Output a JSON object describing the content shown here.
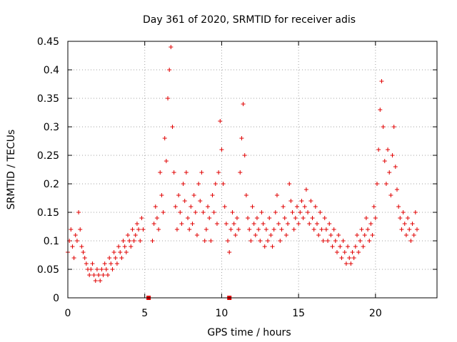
{
  "chart_data": {
    "type": "scatter",
    "title": "Day 361 of 2020, SRMTID for receiver adis",
    "xlabel": "GPS time / hours",
    "ylabel": "SRMTID / TECUs",
    "xlim": [
      0,
      24
    ],
    "ylim": [
      0,
      0.45
    ],
    "xticks": [
      0,
      5,
      10,
      15,
      20
    ],
    "yticks": [
      0,
      0.05,
      0.1,
      0.15,
      0.2,
      0.25,
      0.3,
      0.35,
      0.4,
      0.45
    ],
    "xtick_labels": [
      "0",
      "5",
      "10",
      "15",
      "20"
    ],
    "ytick_labels": [
      "0",
      "0.05",
      "0.1",
      "0.15",
      "0.2",
      "0.25",
      "0.3",
      "0.35",
      "0.4",
      "0.45"
    ],
    "grid": true,
    "marker": "+",
    "color": "#e00000",
    "series": [
      {
        "name": "SRMTID",
        "x": [
          0.0,
          0.1,
          0.2,
          0.3,
          0.4,
          0.5,
          0.6,
          0.7,
          0.8,
          0.9,
          1.0,
          1.1,
          1.2,
          1.3,
          1.4,
          1.5,
          1.6,
          1.7,
          1.8,
          1.9,
          2.0,
          2.1,
          2.2,
          2.3,
          2.4,
          2.5,
          2.6,
          2.7,
          2.8,
          2.9,
          3.0,
          3.1,
          3.2,
          3.3,
          3.4,
          3.5,
          3.6,
          3.7,
          3.8,
          3.9,
          4.0,
          4.1,
          4.2,
          4.3,
          4.4,
          4.5,
          4.6,
          4.7,
          4.8,
          4.9,
          5.5,
          5.6,
          5.7,
          5.8,
          5.9,
          6.0,
          6.1,
          6.2,
          6.3,
          6.4,
          6.5,
          6.6,
          6.7,
          6.8,
          6.9,
          7.0,
          7.1,
          7.2,
          7.3,
          7.4,
          7.5,
          7.6,
          7.7,
          7.8,
          7.9,
          8.0,
          8.1,
          8.2,
          8.3,
          8.4,
          8.5,
          8.6,
          8.7,
          8.8,
          8.9,
          9.0,
          9.1,
          9.2,
          9.3,
          9.4,
          9.5,
          9.6,
          9.7,
          9.8,
          9.9,
          10.0,
          10.1,
          10.2,
          10.3,
          10.4,
          10.5,
          10.6,
          10.7,
          10.8,
          10.9,
          11.0,
          11.1,
          11.2,
          11.3,
          11.4,
          11.5,
          11.6,
          11.7,
          11.8,
          11.9,
          12.0,
          12.1,
          12.2,
          12.3,
          12.4,
          12.5,
          12.6,
          12.7,
          12.8,
          12.9,
          13.0,
          13.1,
          13.2,
          13.3,
          13.4,
          13.5,
          13.6,
          13.7,
          13.8,
          13.9,
          14.0,
          14.1,
          14.2,
          14.3,
          14.4,
          14.5,
          14.6,
          14.7,
          14.8,
          14.9,
          15.0,
          15.1,
          15.2,
          15.3,
          15.4,
          15.5,
          15.6,
          15.7,
          15.8,
          15.9,
          16.0,
          16.1,
          16.2,
          16.3,
          16.4,
          16.5,
          16.6,
          16.7,
          16.8,
          16.9,
          17.0,
          17.1,
          17.2,
          17.3,
          17.4,
          17.5,
          17.6,
          17.7,
          17.8,
          17.9,
          18.0,
          18.1,
          18.2,
          18.3,
          18.4,
          18.5,
          18.6,
          18.7,
          18.8,
          18.9,
          19.0,
          19.1,
          19.2,
          19.3,
          19.4,
          19.5,
          19.6,
          19.7,
          19.8,
          19.9,
          20.0,
          20.1,
          20.2,
          20.3,
          20.4,
          20.5,
          20.6,
          20.7,
          20.8,
          20.9,
          21.0,
          21.1,
          21.2,
          21.3,
          21.4,
          21.5,
          21.6,
          21.7,
          21.8,
          21.9,
          22.0,
          22.1,
          22.2,
          22.3,
          22.4,
          22.5,
          22.6,
          22.7
        ],
        "y": [
          0.08,
          0.1,
          0.12,
          0.09,
          0.07,
          0.11,
          0.1,
          0.15,
          0.12,
          0.09,
          0.08,
          0.07,
          0.06,
          0.05,
          0.04,
          0.05,
          0.06,
          0.04,
          0.03,
          0.05,
          0.04,
          0.03,
          0.05,
          0.04,
          0.06,
          0.05,
          0.04,
          0.07,
          0.06,
          0.05,
          0.08,
          0.07,
          0.06,
          0.09,
          0.08,
          0.07,
          0.1,
          0.09,
          0.08,
          0.11,
          0.1,
          0.09,
          0.12,
          0.1,
          0.11,
          0.13,
          0.12,
          0.1,
          0.14,
          0.12,
          0.1,
          0.13,
          0.16,
          0.14,
          0.12,
          0.22,
          0.18,
          0.15,
          0.28,
          0.24,
          0.35,
          0.4,
          0.44,
          0.3,
          0.22,
          0.16,
          0.12,
          0.18,
          0.15,
          0.13,
          0.2,
          0.17,
          0.22,
          0.14,
          0.12,
          0.16,
          0.13,
          0.18,
          0.15,
          0.11,
          0.2,
          0.17,
          0.22,
          0.15,
          0.1,
          0.12,
          0.16,
          0.14,
          0.1,
          0.18,
          0.15,
          0.2,
          0.13,
          0.22,
          0.31,
          0.26,
          0.2,
          0.16,
          0.13,
          0.1,
          0.08,
          0.12,
          0.15,
          0.13,
          0.11,
          0.14,
          0.12,
          0.22,
          0.28,
          0.34,
          0.25,
          0.18,
          0.14,
          0.12,
          0.1,
          0.16,
          0.13,
          0.11,
          0.14,
          0.12,
          0.1,
          0.15,
          0.13,
          0.09,
          0.12,
          0.1,
          0.14,
          0.11,
          0.09,
          0.12,
          0.15,
          0.18,
          0.13,
          0.1,
          0.12,
          0.16,
          0.14,
          0.11,
          0.13,
          0.2,
          0.17,
          0.15,
          0.12,
          0.14,
          0.16,
          0.13,
          0.15,
          0.17,
          0.14,
          0.16,
          0.19,
          0.15,
          0.13,
          0.17,
          0.14,
          0.12,
          0.16,
          0.13,
          0.11,
          0.15,
          0.12,
          0.1,
          0.14,
          0.12,
          0.1,
          0.13,
          0.11,
          0.09,
          0.12,
          0.1,
          0.08,
          0.11,
          0.09,
          0.07,
          0.1,
          0.08,
          0.06,
          0.09,
          0.07,
          0.06,
          0.08,
          0.07,
          0.09,
          0.11,
          0.08,
          0.1,
          0.12,
          0.09,
          0.11,
          0.14,
          0.12,
          0.1,
          0.13,
          0.11,
          0.16,
          0.14,
          0.2,
          0.26,
          0.33,
          0.38,
          0.3,
          0.24,
          0.2,
          0.26,
          0.22,
          0.18,
          0.25,
          0.3,
          0.23,
          0.19,
          0.16,
          0.14,
          0.12,
          0.15,
          0.13,
          0.11,
          0.14,
          0.12,
          0.1,
          0.13,
          0.11,
          0.15,
          0.12
        ]
      }
    ],
    "gap_markers_x": [
      5.25,
      10.5
    ]
  }
}
